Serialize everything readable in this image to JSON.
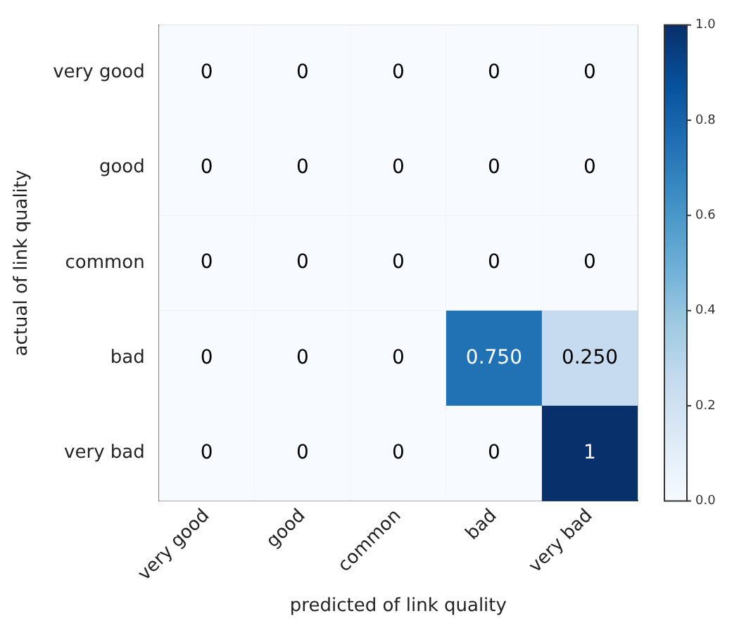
{
  "chart_data": {
    "type": "heatmap",
    "xlabel": "predicted of link quality",
    "ylabel": "actual of link quality",
    "categories": [
      "very good",
      "good",
      "common",
      "bad",
      "very bad"
    ],
    "y_categories": [
      "very good",
      "good",
      "common",
      "bad",
      "very bad"
    ],
    "cells": [
      [
        0,
        0,
        0,
        0,
        0
      ],
      [
        0,
        0,
        0,
        0,
        0
      ],
      [
        0,
        0,
        0,
        0,
        0
      ],
      [
        0,
        0,
        0,
        0.75,
        0.25
      ],
      [
        0,
        0,
        0,
        0,
        1
      ]
    ],
    "cell_labels": [
      [
        "0",
        "0",
        "0",
        "0",
        "0"
      ],
      [
        "0",
        "0",
        "0",
        "0",
        "0"
      ],
      [
        "0",
        "0",
        "0",
        "0",
        "0"
      ],
      [
        "0",
        "0",
        "0",
        "0.750",
        "0.250"
      ],
      [
        "0",
        "0",
        "0",
        "0",
        "1"
      ]
    ],
    "clim": [
      0,
      1
    ],
    "cticks": [
      {
        "value": 0,
        "label": "0.0"
      },
      {
        "value": 0.2,
        "label": "0.2"
      },
      {
        "value": 0.4,
        "label": "0.4"
      },
      {
        "value": 0.6,
        "label": "0.6"
      },
      {
        "value": 0.8,
        "label": "0.8"
      },
      {
        "value": 1,
        "label": "1.0"
      }
    ],
    "grid": true
  }
}
